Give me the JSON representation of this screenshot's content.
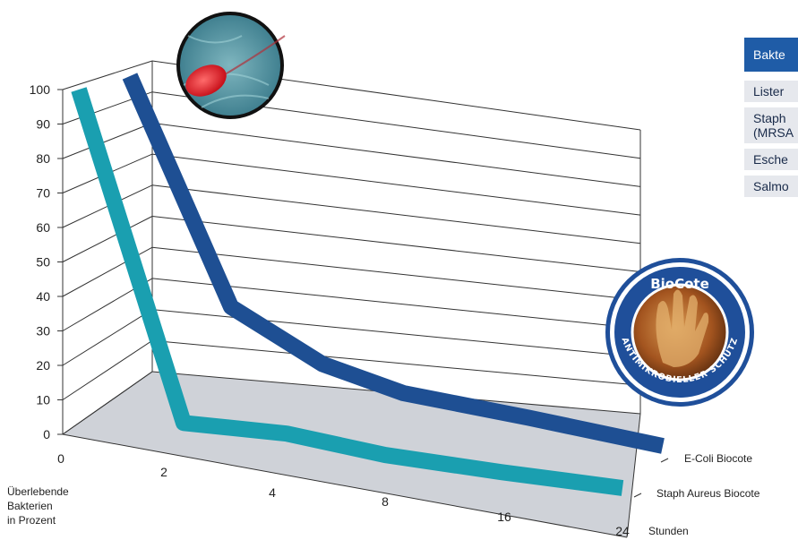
{
  "colors": {
    "staph_series": "#1a9fb0",
    "ecoli_series": "#1e4f93",
    "floor": "#cfd2d8",
    "table_header": "#1f5ca7",
    "table_row": "#e6e8ed"
  },
  "chart_data": {
    "type": "line",
    "subtype": "3d-ribbon",
    "categories": [
      "0",
      "2",
      "4",
      "8",
      "16",
      "24"
    ],
    "series": [
      {
        "name": "Staph Aureus Biocote",
        "values": [
          100,
          2,
          1,
          0.5,
          0.2,
          0
        ]
      },
      {
        "name": "E-Coli Biocote",
        "values": [
          100,
          18,
          10,
          6,
          3,
          0
        ]
      }
    ],
    "y_ticks": [
      0,
      10,
      20,
      30,
      40,
      50,
      60,
      70,
      80,
      90,
      100
    ],
    "ylim": [
      0,
      100
    ],
    "ylabel": [
      "Überlebende",
      "Bakterien",
      "in Prozent"
    ],
    "xlabel": "Stunden",
    "grid": true
  },
  "table": {
    "header": "Bakte",
    "rows": [
      "Lister",
      "Staph\n(MRSA",
      "Esche",
      "Salmo"
    ]
  },
  "badge_icon": "biocote-badge",
  "bacteria_icon": "bacterium-magnifier"
}
